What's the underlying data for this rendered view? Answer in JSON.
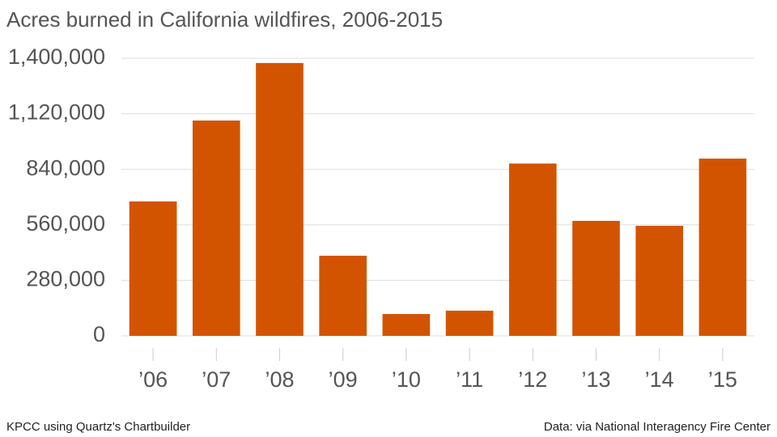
{
  "chart_data": {
    "type": "bar",
    "title": "Acres burned in California wildfires, 2006-2015",
    "categories": [
      "’06",
      "’07",
      "’08",
      "’09",
      "’10",
      "’11",
      "’12",
      "’13",
      "’14",
      "’15"
    ],
    "values": [
      678000,
      1086000,
      1376000,
      404000,
      110000,
      127000,
      869000,
      580000,
      555000,
      894000
    ],
    "color": "#d35400",
    "ylim": [
      0,
      1400000
    ],
    "yticks": [
      0,
      {
        "value": 280000,
        "label": "280,000"
      },
      {
        "value": 560000,
        "label": "560,000"
      },
      {
        "value": 840000,
        "label": "840,000"
      },
      {
        "value": 1120000,
        "label": "1,120,000"
      },
      {
        "value": 1400000,
        "label": "1,400,000"
      }
    ],
    "grid": true,
    "source_left": "KPCC using Quartz's Chartbuilder",
    "source_right": "Data: via National Interagency Fire Center"
  }
}
